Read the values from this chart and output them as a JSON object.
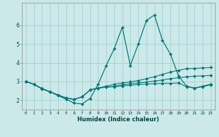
{
  "xlabel": "Humidex (Indice chaleur)",
  "bg_color": "#cce8e8",
  "line_color": "#007878",
  "grid_color": "#99cccc",
  "xlim": [
    -0.5,
    23.5
  ],
  "ylim": [
    1.5,
    7.2
  ],
  "xticks": [
    0,
    1,
    2,
    3,
    4,
    5,
    6,
    7,
    8,
    9,
    10,
    11,
    12,
    13,
    14,
    15,
    16,
    17,
    18,
    19,
    20,
    21,
    22,
    23
  ],
  "yticks": [
    2,
    3,
    4,
    5,
    6
  ],
  "line1_y": [
    3.0,
    2.85,
    2.6,
    2.45,
    2.25,
    2.05,
    1.85,
    1.8,
    2.1,
    2.85,
    3.85,
    4.75,
    5.9,
    3.85,
    5.0,
    6.25,
    6.55,
    5.2,
    4.45,
    3.3,
    2.75,
    2.65,
    2.75,
    2.85
  ],
  "line2_y": [
    3.0,
    2.85,
    2.62,
    2.45,
    2.28,
    2.12,
    2.05,
    2.18,
    2.55,
    2.65,
    2.75,
    2.85,
    2.92,
    2.98,
    3.05,
    3.15,
    3.25,
    3.38,
    3.5,
    3.6,
    3.68,
    3.7,
    3.72,
    3.75
  ],
  "line3_y": [
    3.0,
    2.85,
    2.62,
    2.45,
    2.28,
    2.12,
    2.05,
    2.18,
    2.55,
    2.65,
    2.7,
    2.75,
    2.82,
    2.88,
    2.92,
    2.97,
    3.02,
    3.08,
    3.15,
    3.2,
    3.25,
    3.28,
    3.3,
    3.32
  ],
  "line4_y": [
    3.0,
    2.85,
    2.62,
    2.45,
    2.28,
    2.12,
    2.05,
    2.18,
    2.55,
    2.65,
    2.7,
    2.72,
    2.76,
    2.8,
    2.84,
    2.86,
    2.88,
    2.9,
    2.9,
    2.92,
    2.72,
    2.65,
    2.72,
    2.82
  ]
}
